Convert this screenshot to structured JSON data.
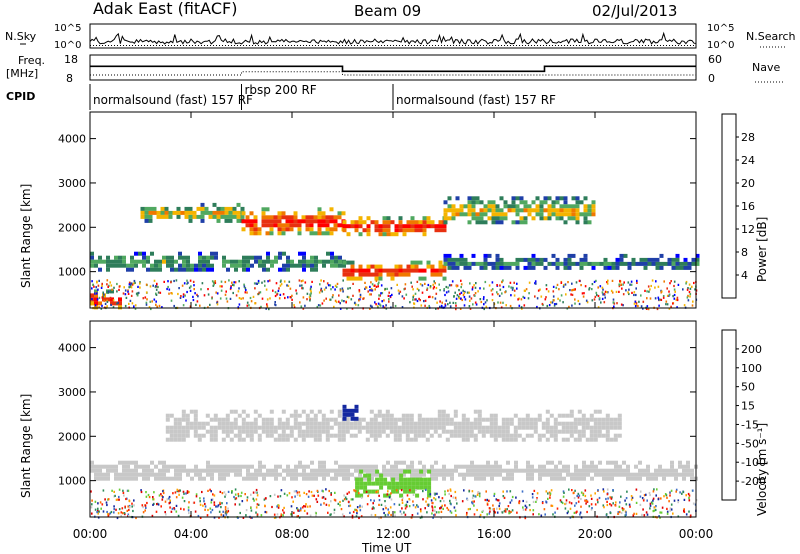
{
  "header": {
    "radar": "Adak East (fitACF)",
    "beam": "Beam 09",
    "date": "02/Jul/2013"
  },
  "time_axis": {
    "label": "Time UT",
    "ticks": [
      "00:00",
      "04:00",
      "08:00",
      "12:00",
      "16:00",
      "20:00",
      "00:00"
    ],
    "range_hours": [
      0,
      24
    ]
  },
  "noise_panel": {
    "left_label": "N.Sky",
    "right_label": "N.Search",
    "left_ticks": [
      "10^5",
      "10^0"
    ],
    "right_ticks": [
      "10^5",
      "10^0"
    ]
  },
  "freq_panel": {
    "left_label_1": "Freq.",
    "left_label_2": "[MHz]",
    "right_label": "Nave",
    "left_ticks": [
      "18",
      "8"
    ],
    "right_ticks": [
      "60",
      "0"
    ]
  },
  "cpid_panel": {
    "label": "CPID",
    "segments": [
      {
        "start": 0,
        "end": 6.0,
        "text": "normalsound (fast) 157 RF"
      },
      {
        "start": 6.0,
        "end": 12.0,
        "text": "rbsp 200 RF"
      },
      {
        "start": 12.0,
        "end": 24,
        "text": "normalsound (fast) 157 RF"
      }
    ]
  },
  "power_panel": {
    "ylabel": "Slant Range [km]",
    "yticks": [
      "1000",
      "2000",
      "3000",
      "4000"
    ],
    "colorbar_label": "Power [dB]",
    "colorbar_ticks": [
      "4",
      "8",
      "12",
      "16",
      "20",
      "24",
      "28"
    ],
    "colors": [
      "#0000ff",
      "#1f3fa8",
      "#2e7d5a",
      "#50a860",
      "#f4b400",
      "#f07800",
      "#e83010",
      "#ff0000"
    ]
  },
  "velocity_panel": {
    "ylabel": "Slant Range [km]",
    "yticks": [
      "1000",
      "2000",
      "3000",
      "4000"
    ],
    "colorbar_label": "Velocity [m s⁻¹]",
    "colorbar_ticks": [
      "200",
      "100",
      "50",
      "15",
      "-15",
      "-50",
      "-100",
      "-200"
    ],
    "colors": [
      "#1428a0",
      "#3c6ec8",
      "#2e8b57",
      "#66cc33",
      "#c8c8c8",
      "#ffa500",
      "#ff6a00",
      "#ff2000",
      "#e00000"
    ]
  },
  "chart_data": {
    "type": "heatmap",
    "title": "Adak East (fitACF) Beam 09 02/Jul/2013",
    "xlabel": "Time UT",
    "ylabel": "Slant Range [km]",
    "xlim_hours": [
      0,
      24
    ],
    "ylim_km": [
      180,
      4600
    ],
    "series": [
      {
        "name": "Power [dB]",
        "clim": [
          0,
          30
        ],
        "bands": [
          {
            "t_start": 0.0,
            "t_end": 10.0,
            "range_km": [
              1050,
              1450
            ],
            "level_db": 12
          },
          {
            "t_start": 2.0,
            "t_end": 6.0,
            "range_km": [
              2150,
              2550
            ],
            "level_db": 18
          },
          {
            "t_start": 6.0,
            "t_end": 10.0,
            "range_km": [
              1850,
              2450
            ],
            "level_db": 28
          },
          {
            "t_start": 10.0,
            "t_end": 14.0,
            "range_km": [
              1850,
              2250
            ],
            "level_db": 28
          },
          {
            "t_start": 10.0,
            "t_end": 14.0,
            "range_km": [
              850,
              1250
            ],
            "level_db": 28
          },
          {
            "t_start": 14.0,
            "t_end": 24.0,
            "range_km": [
              1050,
              1400
            ],
            "level_db": 10
          },
          {
            "t_start": 14.0,
            "t_end": 20.0,
            "range_km": [
              2100,
              2700
            ],
            "level_db": 18
          },
          {
            "t_start": 0.0,
            "t_end": 1.2,
            "range_km": [
              200,
              600
            ],
            "level_db": 28
          }
        ]
      },
      {
        "name": "Velocity [m/s]",
        "clim": [
          -200,
          200
        ],
        "bands": [
          {
            "t_start": 0.0,
            "t_end": 24.0,
            "range_km": [
              1000,
              1450
            ],
            "velocity": 0
          },
          {
            "t_start": 3.0,
            "t_end": 21.0,
            "range_km": [
              1900,
              2600
            ],
            "velocity": 0
          },
          {
            "t_start": 10.5,
            "t_end": 13.5,
            "range_km": [
              700,
              1250
            ],
            "velocity": 40
          },
          {
            "t_start": 10.0,
            "t_end": 10.5,
            "range_km": [
              2400,
              2800
            ],
            "velocity": 180
          }
        ]
      }
    ],
    "frequency_mhz": [
      {
        "t_start": 0,
        "t_end": 10.0,
        "value": 13.5
      },
      {
        "t_start": 10.0,
        "t_end": 18.0,
        "value": 11.5
      },
      {
        "t_start": 18.0,
        "t_end": 24,
        "value": 13.5
      }
    ],
    "nave": [
      {
        "t_start": 0,
        "t_end": 6.0,
        "value": 12
      },
      {
        "t_start": 6.0,
        "t_end": 10.0,
        "value": 20
      },
      {
        "t_start": 10.0,
        "t_end": 24,
        "value": 12
      }
    ]
  }
}
